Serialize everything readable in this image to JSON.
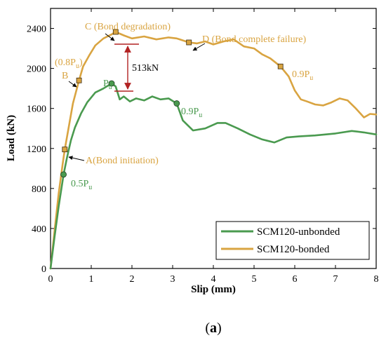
{
  "chart_data": {
    "type": "line",
    "title": "",
    "xlabel": "Slip (mm)",
    "ylabel": "Load (kN)",
    "xlim": [
      0,
      8
    ],
    "ylim": [
      0,
      2600
    ],
    "x_ticks": [
      0,
      1,
      2,
      3,
      4,
      5,
      6,
      7,
      8
    ],
    "y_ticks": [
      0,
      400,
      800,
      1200,
      1600,
      2000,
      2400
    ],
    "grid": false,
    "legend_position": "bottom-right",
    "panel_label": "(a)",
    "series": [
      {
        "name": "SCM120-bonded",
        "color": "#D9A441",
        "points": [
          [
            0,
            0
          ],
          [
            0.1,
            380
          ],
          [
            0.2,
            750
          ],
          [
            0.3,
            1050
          ],
          [
            0.35,
            1190
          ],
          [
            0.45,
            1420
          ],
          [
            0.55,
            1650
          ],
          [
            0.7,
            1880
          ],
          [
            0.8,
            2020
          ],
          [
            0.95,
            2130
          ],
          [
            1.1,
            2230
          ],
          [
            1.3,
            2300
          ],
          [
            1.5,
            2340
          ],
          [
            1.6,
            2365
          ],
          [
            1.8,
            2330
          ],
          [
            2.0,
            2300
          ],
          [
            2.3,
            2320
          ],
          [
            2.6,
            2290
          ],
          [
            2.9,
            2310
          ],
          [
            3.1,
            2300
          ],
          [
            3.4,
            2260
          ],
          [
            3.6,
            2250
          ],
          [
            3.8,
            2270
          ],
          [
            4.0,
            2240
          ],
          [
            4.25,
            2270
          ],
          [
            4.5,
            2290
          ],
          [
            4.75,
            2220
          ],
          [
            5.0,
            2200
          ],
          [
            5.2,
            2140
          ],
          [
            5.4,
            2100
          ],
          [
            5.65,
            2020
          ],
          [
            5.85,
            1920
          ],
          [
            6.0,
            1780
          ],
          [
            6.15,
            1690
          ],
          [
            6.3,
            1670
          ],
          [
            6.5,
            1640
          ],
          [
            6.7,
            1630
          ],
          [
            6.9,
            1660
          ],
          [
            7.1,
            1700
          ],
          [
            7.3,
            1680
          ],
          [
            7.5,
            1600
          ],
          [
            7.7,
            1510
          ],
          [
            7.85,
            1545
          ],
          [
            8.0,
            1540
          ]
        ]
      },
      {
        "name": "SCM120-unbonded",
        "color": "#4A9A4F",
        "points": [
          [
            0,
            0
          ],
          [
            0.1,
            320
          ],
          [
            0.2,
            620
          ],
          [
            0.32,
            940
          ],
          [
            0.4,
            1100
          ],
          [
            0.5,
            1280
          ],
          [
            0.6,
            1410
          ],
          [
            0.75,
            1550
          ],
          [
            0.9,
            1660
          ],
          [
            1.1,
            1760
          ],
          [
            1.3,
            1800
          ],
          [
            1.5,
            1850
          ],
          [
            1.6,
            1820
          ],
          [
            1.7,
            1690
          ],
          [
            1.8,
            1720
          ],
          [
            1.95,
            1670
          ],
          [
            2.1,
            1700
          ],
          [
            2.3,
            1680
          ],
          [
            2.5,
            1720
          ],
          [
            2.7,
            1690
          ],
          [
            2.9,
            1700
          ],
          [
            3.1,
            1650
          ],
          [
            3.25,
            1480
          ],
          [
            3.5,
            1380
          ],
          [
            3.8,
            1400
          ],
          [
            4.1,
            1455
          ],
          [
            4.3,
            1455
          ],
          [
            4.6,
            1400
          ],
          [
            4.9,
            1340
          ],
          [
            5.2,
            1290
          ],
          [
            5.5,
            1260
          ],
          [
            5.8,
            1310
          ],
          [
            6.1,
            1320
          ],
          [
            6.5,
            1330
          ],
          [
            7.0,
            1350
          ],
          [
            7.4,
            1375
          ],
          [
            7.7,
            1360
          ],
          [
            8.0,
            1340
          ]
        ]
      }
    ],
    "markers": [
      {
        "series": "SCM120-bonded",
        "x": 0.35,
        "y": 1190,
        "shape": "square"
      },
      {
        "series": "SCM120-bonded",
        "x": 0.7,
        "y": 1880,
        "shape": "square"
      },
      {
        "series": "SCM120-bonded",
        "x": 1.6,
        "y": 2365,
        "shape": "square"
      },
      {
        "series": "SCM120-bonded",
        "x": 3.4,
        "y": 2260,
        "shape": "square"
      },
      {
        "series": "SCM120-bonded",
        "x": 5.65,
        "y": 2020,
        "shape": "square"
      },
      {
        "series": "SCM120-unbonded",
        "x": 0.32,
        "y": 940,
        "shape": "circle"
      },
      {
        "series": "SCM120-unbonded",
        "x": 1.5,
        "y": 1850,
        "shape": "circle"
      },
      {
        "series": "SCM120-unbonded",
        "x": 3.1,
        "y": 1650,
        "shape": "circle"
      }
    ],
    "annotations": {
      "A": {
        "label": "A(Bond initiation)",
        "color": "#D9A441"
      },
      "B": {
        "label": "B",
        "color": "#D9A441"
      },
      "B_ratio": {
        "label": "(0.8P",
        "sub": "u",
        "close": ")",
        "color": "#D9A441"
      },
      "C": {
        "label": "C (Bond degradation)",
        "color": "#D9A441"
      },
      "D": {
        "label": "D (Bond complete failure)",
        "color": "#D9A441"
      },
      "bonded_09": {
        "label": "0.9P",
        "sub": "u",
        "color": "#D9A441"
      },
      "unb_05": {
        "label": "0.5P",
        "sub": "u",
        "color": "#4A9A4F"
      },
      "unb_pu": {
        "label": "P",
        "sub": "u",
        "color": "#4A9A4F"
      },
      "unb_09": {
        "label": "0.9P",
        "sub": "u",
        "color": "#4A9A4F"
      },
      "difference": {
        "label": "513kN",
        "color": "#000000",
        "arrow_color": "#B22222"
      }
    },
    "legend": {
      "entries": [
        {
          "name": "SCM120-unbonded",
          "color": "#4A9A4F"
        },
        {
          "name": "SCM120-bonded",
          "color": "#D9A441"
        }
      ]
    }
  }
}
